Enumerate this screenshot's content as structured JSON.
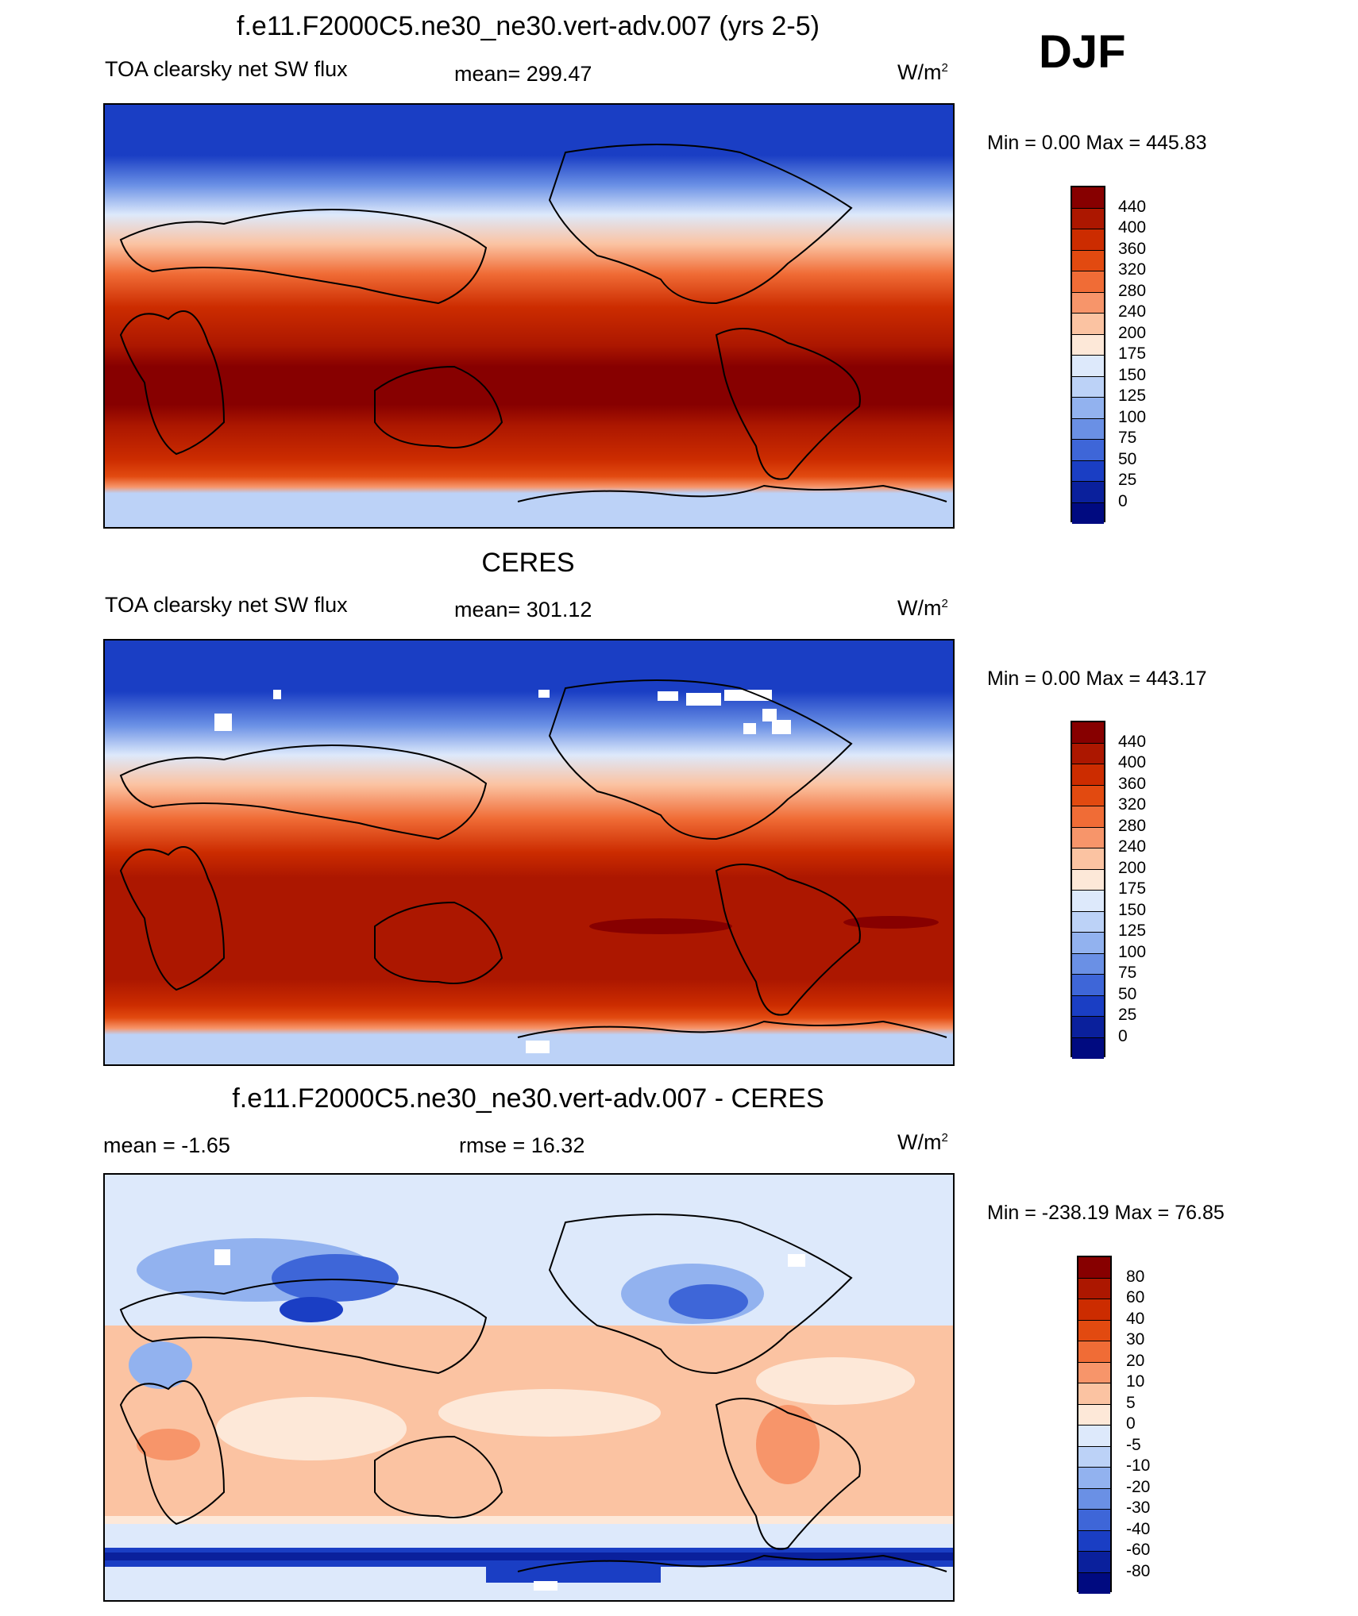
{
  "season": "DJF",
  "panels": [
    {
      "title": "f.e11.F2000C5.ne30_ne30.vert-adv.007 (yrs 2-5)",
      "left_label": "TOA clearsky net SW flux",
      "center_label": "mean= 299.47",
      "unit": "W/m",
      "unit_sup": "2",
      "minmax": "Min =    0.00 Max = 445.83",
      "colorbar_labels": [
        "440",
        "400",
        "360",
        "320",
        "280",
        "240",
        "200",
        "175",
        "150",
        "125",
        "100",
        "75",
        "50",
        "25",
        "0"
      ],
      "colors": [
        "#870000",
        "#ac1700",
        "#cc2c00",
        "#e24a10",
        "#f06c36",
        "#f7956a",
        "#fbc3a2",
        "#fde8d8",
        "#dde9fb",
        "#bcd2f7",
        "#92b2ef",
        "#6a90e5",
        "#3e66d8",
        "#1a3ec4",
        "#0a209c",
        "#000a80"
      ]
    },
    {
      "title": "CERES",
      "left_label": "TOA clearsky net SW flux",
      "center_label": "mean= 301.12",
      "unit": "W/m",
      "unit_sup": "2",
      "minmax": "Min =    0.00 Max = 443.17",
      "colorbar_labels": [
        "440",
        "400",
        "360",
        "320",
        "280",
        "240",
        "200",
        "175",
        "150",
        "125",
        "100",
        "75",
        "50",
        "25",
        "0"
      ],
      "colors": [
        "#870000",
        "#ac1700",
        "#cc2c00",
        "#e24a10",
        "#f06c36",
        "#f7956a",
        "#fbc3a2",
        "#fde8d8",
        "#dde9fb",
        "#bcd2f7",
        "#92b2ef",
        "#6a90e5",
        "#3e66d8",
        "#1a3ec4",
        "#0a209c",
        "#000a80"
      ]
    },
    {
      "title": "f.e11.F2000C5.ne30_ne30.vert-adv.007 - CERES",
      "left_label": "mean =  -1.65",
      "center_label": "rmse =  16.32",
      "unit": "W/m",
      "unit_sup": "2",
      "minmax": "Min = -238.19 Max =  76.85",
      "colorbar_labels": [
        "80",
        "60",
        "40",
        "30",
        "20",
        "10",
        "5",
        "0",
        "-5",
        "-10",
        "-20",
        "-30",
        "-40",
        "-60",
        "-80"
      ],
      "colors": [
        "#870000",
        "#ac1700",
        "#cc2c00",
        "#e24a10",
        "#f06c36",
        "#f7956a",
        "#fbc3a2",
        "#fde8d8",
        "#dde9fb",
        "#bcd2f7",
        "#92b2ef",
        "#6a90e5",
        "#3e66d8",
        "#1a3ec4",
        "#0a209c",
        "#000a80"
      ]
    }
  ]
}
